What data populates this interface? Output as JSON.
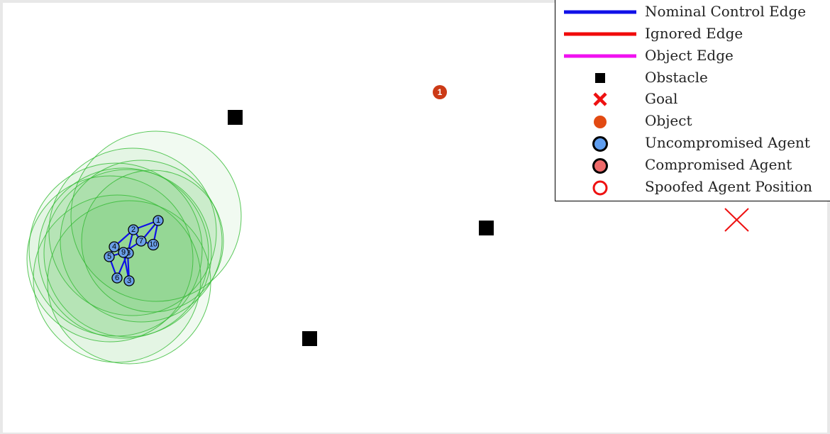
{
  "colors": {
    "nominal_edge": "#1010e8",
    "ignored_edge": "#f00a0a",
    "object_edge": "#f010f0",
    "obstacle": "#000000",
    "goal": "#ee1111",
    "object": "#cc3a16",
    "uncompromised_agent": "#6a9fe8",
    "compromised_agent": "#ee6a6a",
    "spoofed_agent": "#ee1111",
    "sensing_region": "#33bb33"
  },
  "legend": {
    "items": [
      {
        "label": "Nominal Control Edge",
        "icon": "blue-line-icon"
      },
      {
        "label": "Ignored Edge",
        "icon": "red-line-icon"
      },
      {
        "label": "Object Edge",
        "icon": "magenta-line-icon"
      },
      {
        "label": "Obstacle",
        "icon": "black-square-icon"
      },
      {
        "label": "Goal",
        "icon": "red-x-icon"
      },
      {
        "label": "Object",
        "icon": "orange-dot-icon"
      },
      {
        "label": "Uncompromised Agent",
        "icon": "blue-circle-icon"
      },
      {
        "label": "Compromised Agent",
        "icon": "red-circle-icon"
      },
      {
        "label": "Spoofed Agent Position",
        "icon": "red-ring-icon"
      }
    ]
  },
  "object": {
    "label": "1"
  },
  "agents": [
    {
      "label": "1"
    },
    {
      "label": "2"
    },
    {
      "label": "3"
    },
    {
      "label": "4"
    },
    {
      "label": "5"
    },
    {
      "label": "6"
    },
    {
      "label": "7"
    },
    {
      "label": "8"
    },
    {
      "label": "9"
    },
    {
      "label": "10"
    }
  ]
}
